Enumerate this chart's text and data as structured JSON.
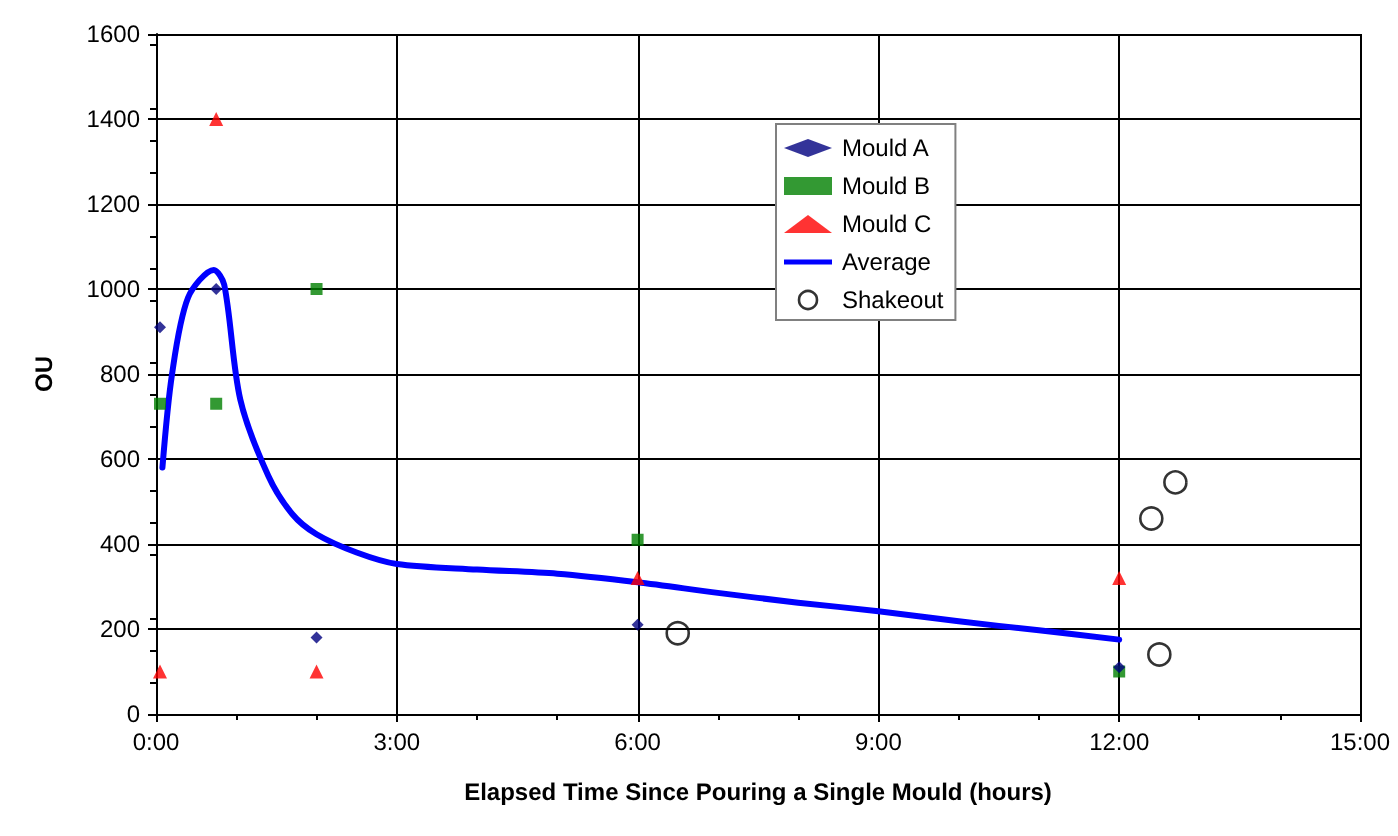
{
  "chart_data": {
    "type": "scatter",
    "xlabel": "Elapsed Time Since Pouring a Single Mould (hours)",
    "ylabel": "OU",
    "xlim": [
      0,
      15
    ],
    "xticks": [
      {
        "value": 0,
        "label": "0:00"
      },
      {
        "value": 3,
        "label": "3:00"
      },
      {
        "value": 6,
        "label": "6:00"
      },
      {
        "value": 9,
        "label": "9:00"
      },
      {
        "value": 12,
        "label": "12:00"
      },
      {
        "value": 15,
        "label": "15:00"
      }
    ],
    "ylim": [
      0,
      1600
    ],
    "yticks": [
      0,
      200,
      400,
      600,
      800,
      1000,
      1200,
      1400,
      1600
    ],
    "grid": true,
    "legend": "top",
    "series": [
      {
        "name": "Mould A",
        "marker": "diamond",
        "color": "#000080",
        "x": [
          0.05,
          0.75,
          2,
          6,
          12
        ],
        "values": [
          910,
          1000,
          180,
          210,
          110
        ]
      },
      {
        "name": "Mould B",
        "marker": "square",
        "color": "#008000",
        "x": [
          0.05,
          0.75,
          2,
          6,
          12
        ],
        "values": [
          730,
          730,
          1000,
          410,
          100
        ]
      },
      {
        "name": "Mould C",
        "marker": "triangle",
        "color": "#ff0000",
        "x": [
          0.05,
          0.75,
          2,
          6,
          12
        ],
        "values": [
          100,
          1400,
          100,
          320,
          320
        ]
      },
      {
        "name": "Average",
        "type": "line",
        "marker": "none",
        "color": "#0000ff",
        "x": [
          0.08,
          0.2,
          0.4,
          0.72,
          0.85,
          1.05,
          1.4,
          1.7,
          2,
          2.5,
          3,
          4,
          5,
          6,
          7,
          8,
          9,
          10,
          11,
          12
        ],
        "values": [
          580,
          800,
          980,
          1045,
          1010,
          740,
          560,
          470,
          423,
          380,
          353,
          340,
          330,
          310,
          285,
          262,
          242,
          218,
          197,
          175
        ]
      },
      {
        "name": "Shakeout",
        "marker": "circle",
        "color": "#000000",
        "x": [
          6.5,
          12.4,
          12.7,
          12.5
        ],
        "values": [
          190,
          460,
          545,
          140
        ]
      }
    ]
  }
}
